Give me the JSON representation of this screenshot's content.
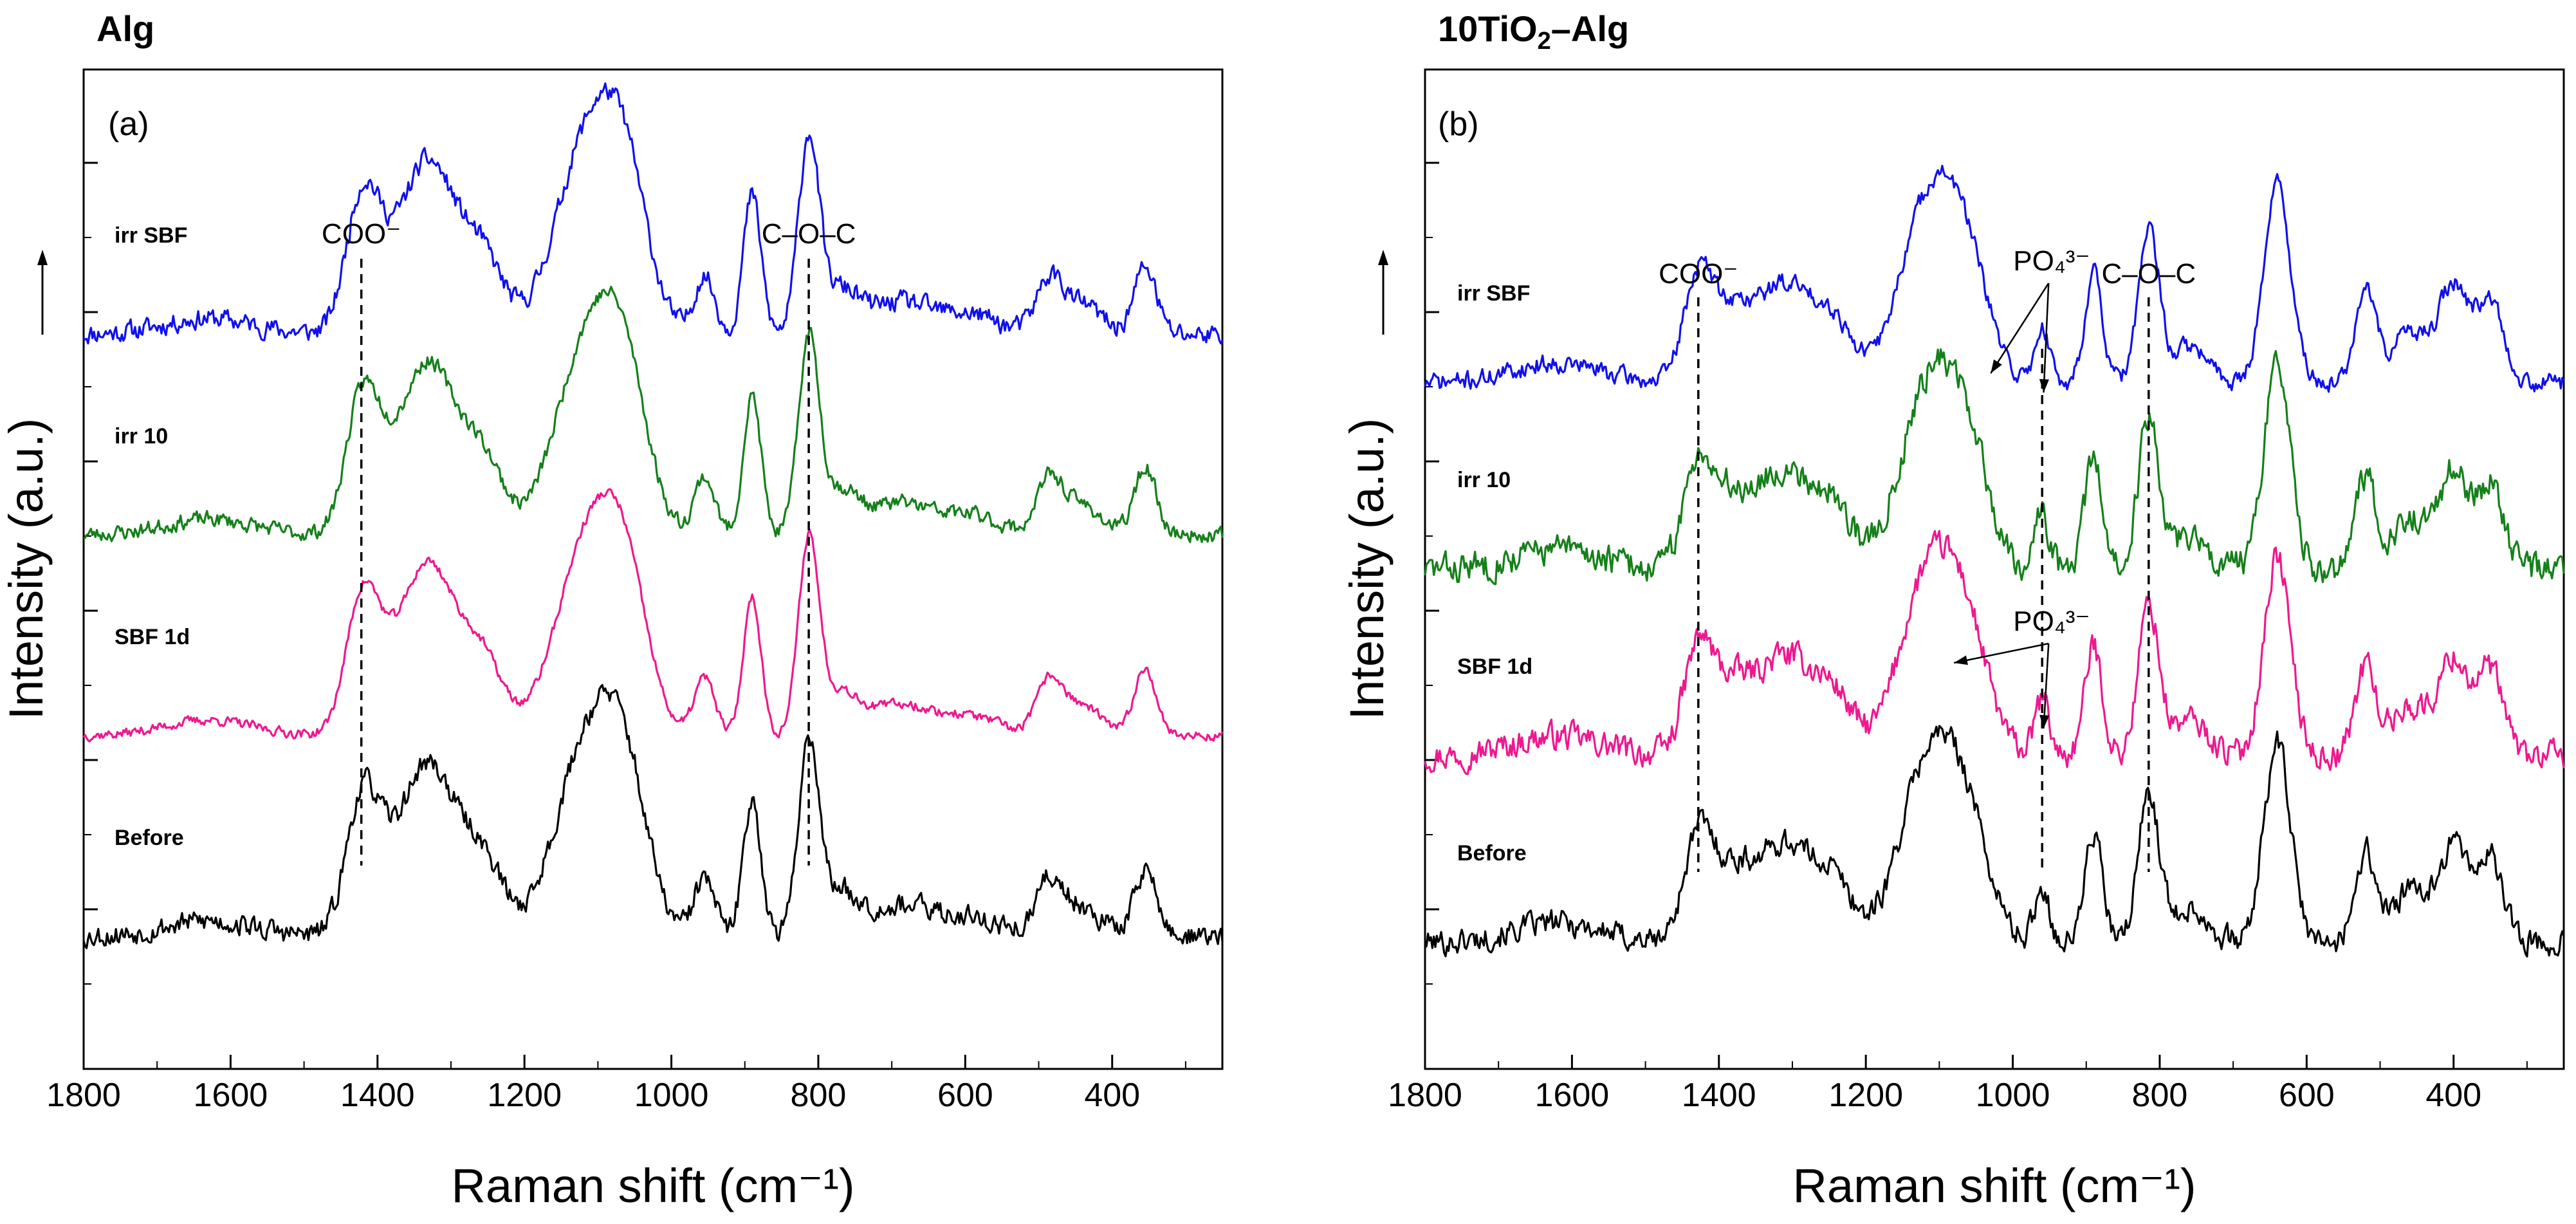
{
  "chart_data": [
    {
      "type": "line",
      "panel": "a",
      "panel_label": "(a)",
      "title": "Alg",
      "xlabel": "Raman shift (cm⁻¹)",
      "ylabel": "Intensity (a.u.)",
      "xlim": [
        1800,
        250
      ],
      "x_reversed": true,
      "xticks": [
        1800,
        1600,
        1400,
        1200,
        1000,
        800,
        600,
        400
      ],
      "y_units": "arbitrary (offset stacked)",
      "annotations": [
        {
          "text": "COO⁻",
          "x": 1422,
          "dashed_line": true
        },
        {
          "text": "C–O–C",
          "x": 813,
          "dashed_line": true
        }
      ],
      "peaks": [
        [
          1630,
          0.08,
          60
        ],
        [
          1422,
          0.62,
          22
        ],
        [
          1390,
          0.28,
          28
        ],
        [
          1340,
          0.45,
          28
        ],
        [
          1305,
          0.55,
          40
        ],
        [
          1250,
          0.22,
          25
        ],
        [
          1130,
          0.55,
          40
        ],
        [
          1090,
          0.65,
          40
        ],
        [
          1060,
          0.45,
          30
        ],
        [
          955,
          0.3,
          14
        ],
        [
          890,
          0.72,
          12
        ],
        [
          813,
          1.0,
          14
        ],
        [
          770,
          0.22,
          25
        ],
        [
          690,
          0.16,
          40
        ],
        [
          595,
          0.1,
          40
        ],
        [
          485,
          0.28,
          18
        ],
        [
          440,
          0.15,
          25
        ],
        [
          355,
          0.35,
          15
        ]
      ],
      "series": [
        {
          "name": "irr SBF",
          "color": "#1010ee",
          "offset": 3.0,
          "noise": 0.045,
          "seed": 11
        },
        {
          "name": "irr 10",
          "color": "#15801a",
          "offset": 2.0,
          "noise": 0.035,
          "seed": 23
        },
        {
          "name": "SBF 1d",
          "color": "#ee1890",
          "offset": 1.0,
          "noise": 0.022,
          "seed": 37
        },
        {
          "name": "Before",
          "color": "#000000",
          "offset": 0.0,
          "noise": 0.05,
          "seed": 53
        }
      ]
    },
    {
      "type": "line",
      "panel": "b",
      "panel_label": "(b)",
      "title": "10TiO₂–Alg",
      "xlabel": "Raman shift (cm⁻¹)",
      "ylabel": "Intensity (a.u.)",
      "xlim": [
        1800,
        250
      ],
      "x_reversed": true,
      "xticks": [
        1800,
        1600,
        1400,
        1200,
        1000,
        800,
        600,
        400
      ],
      "y_units": "arbitrary (offset stacked)",
      "annotations": [
        {
          "text": "COO⁻",
          "x": 1428,
          "dashed_line": true
        },
        {
          "text": "C–O–C",
          "x": 815,
          "dashed_line": true
        },
        {
          "text": "PO₄³⁻",
          "x": 960,
          "dashed_line": true,
          "arrows_to": [
            1030,
            958
          ],
          "series": "irr SBF"
        },
        {
          "text": "PO₄³⁻",
          "x": 960,
          "dashed_line": false,
          "arrows_to": [
            1080,
            958
          ],
          "series": "SBF 1d"
        }
      ],
      "peaks": [
        [
          1620,
          0.1,
          60
        ],
        [
          1428,
          0.52,
          20
        ],
        [
          1385,
          0.25,
          25
        ],
        [
          1310,
          0.5,
          45
        ],
        [
          1240,
          0.2,
          25
        ],
        [
          1130,
          0.45,
          35
        ],
        [
          1095,
          0.6,
          38
        ],
        [
          1060,
          0.35,
          30
        ],
        [
          960,
          0.28,
          10
        ],
        [
          890,
          0.55,
          12
        ],
        [
          815,
          0.75,
          14
        ],
        [
          760,
          0.18,
          25
        ],
        [
          640,
          1.0,
          18
        ],
        [
          520,
          0.45,
          14
        ],
        [
          460,
          0.25,
          25
        ],
        [
          400,
          0.48,
          20
        ],
        [
          350,
          0.42,
          18
        ]
      ],
      "series": [
        {
          "name": "irr SBF",
          "color": "#1010ee",
          "offset": 3.0,
          "noise": 0.04,
          "seed": 71
        },
        {
          "name": "irr 10",
          "color": "#15801a",
          "offset": 2.0,
          "noise": 0.065,
          "seed": 83
        },
        {
          "name": "SBF 1d",
          "color": "#ee1890",
          "offset": 1.0,
          "noise": 0.06,
          "seed": 97
        },
        {
          "name": "Before",
          "color": "#000000",
          "offset": 0.0,
          "noise": 0.055,
          "seed": 101
        }
      ]
    }
  ]
}
